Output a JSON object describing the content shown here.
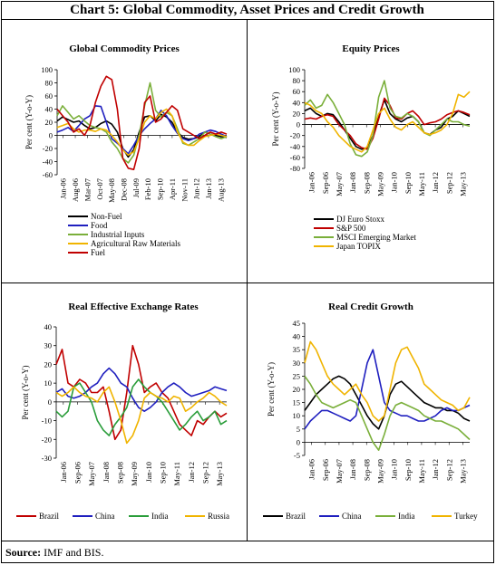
{
  "title": "Chart 5: Global Commodity, Asset Prices and Credit Growth",
  "source": {
    "label": "Source:",
    "text": "IMF and BIS."
  },
  "chart_data": [
    {
      "type": "line",
      "title": "Global Commodity Prices",
      "ylabel": "Per cent (Y-o-Y)",
      "ylim": [
        -60,
        100
      ],
      "yticks": [
        -60,
        -40,
        -20,
        0,
        20,
        40,
        60,
        80,
        100
      ],
      "x_tick_labels": [
        "Jan-06",
        "Aug-06",
        "Mar-07",
        "Oct-07",
        "May-08",
        "Dec-08",
        "Jul-09",
        "Feb-10",
        "Sep-10",
        "Apr-11",
        "Nov-11",
        "Jun-12",
        "Jan-13",
        "Aug-13"
      ],
      "legend_position": "bottom",
      "series": [
        {
          "name": "Non-Fuel",
          "color": "#000000",
          "values": [
            22,
            28,
            24,
            20,
            22,
            15,
            10,
            12,
            18,
            22,
            17,
            5,
            -20,
            -33,
            -22,
            5,
            28,
            30,
            22,
            32,
            28,
            20,
            5,
            -3,
            -6,
            -5,
            -2,
            5,
            2,
            0,
            -2,
            -3
          ]
        },
        {
          "name": "Food",
          "color": "#1f1fbf",
          "values": [
            5,
            8,
            12,
            6,
            15,
            25,
            30,
            45,
            44,
            20,
            -5,
            -12,
            -20,
            -28,
            -15,
            0,
            10,
            18,
            25,
            38,
            30,
            15,
            3,
            -5,
            -8,
            -5,
            2,
            5,
            8,
            6,
            2,
            -2
          ]
        },
        {
          "name": "Industrial Inputs",
          "color": "#7aaf3a",
          "values": [
            30,
            45,
            35,
            25,
            30,
            22,
            15,
            12,
            10,
            5,
            -10,
            -20,
            -35,
            -42,
            -30,
            0,
            45,
            80,
            38,
            28,
            35,
            30,
            10,
            -12,
            -15,
            -10,
            -5,
            5,
            2,
            -2,
            -5,
            -2
          ]
        },
        {
          "name": "Agricultural Raw Materials",
          "color": "#f0b400",
          "values": [
            12,
            15,
            18,
            10,
            5,
            8,
            8,
            6,
            10,
            8,
            0,
            -10,
            -22,
            -30,
            -25,
            -5,
            20,
            30,
            25,
            35,
            40,
            30,
            5,
            -10,
            -15,
            -15,
            -8,
            -2,
            0,
            2,
            0,
            -2
          ]
        },
        {
          "name": "Fuel",
          "color": "#c00000",
          "values": [
            40,
            30,
            20,
            5,
            10,
            0,
            15,
            50,
            75,
            90,
            85,
            40,
            -35,
            -50,
            -52,
            -20,
            50,
            60,
            20,
            25,
            35,
            45,
            38,
            10,
            5,
            0,
            -5,
            0,
            5,
            2,
            5,
            2
          ]
        }
      ]
    },
    {
      "type": "line",
      "title": "Equity Prices",
      "ylabel": "Per cent (Y-o-Y)",
      "ylim": [
        -80,
        100
      ],
      "yticks": [
        -80,
        -60,
        -40,
        -20,
        0,
        20,
        40,
        60,
        80,
        100
      ],
      "x_tick_labels": [
        "Jan-06",
        "Sep-06",
        "May-07",
        "Jan-08",
        "Sep-08",
        "May-09",
        "Jan-10",
        "Sep-10",
        "May-11",
        "Jan-12",
        "Sep-12",
        "May-13"
      ],
      "legend_position": "bottom",
      "series": [
        {
          "name": "DJ Euro Stoxx",
          "color": "#000000",
          "values": [
            25,
            30,
            20,
            15,
            20,
            18,
            5,
            -10,
            -25,
            -40,
            -45,
            -42,
            -20,
            15,
            45,
            20,
            10,
            5,
            12,
            15,
            5,
            -15,
            -18,
            -10,
            -5,
            10,
            15,
            25,
            20,
            15
          ]
        },
        {
          "name": "S&P 500",
          "color": "#c00000",
          "values": [
            10,
            12,
            10,
            15,
            18,
            15,
            0,
            -10,
            -20,
            -35,
            -42,
            -45,
            -25,
            10,
            48,
            35,
            12,
            10,
            20,
            25,
            15,
            0,
            3,
            5,
            10,
            18,
            22,
            25,
            22,
            18
          ]
        },
        {
          "name": "MSCI Emerging Market",
          "color": "#7aaf3a",
          "values": [
            35,
            45,
            30,
            35,
            55,
            40,
            20,
            0,
            -35,
            -55,
            -58,
            -50,
            -20,
            50,
            80,
            30,
            15,
            12,
            20,
            15,
            5,
            -15,
            -20,
            -10,
            0,
            10,
            5,
            5,
            0,
            -3
          ]
        },
        {
          "name": "Japan TOPIX",
          "color": "#f0b400",
          "values": [
            40,
            35,
            25,
            20,
            5,
            -5,
            -20,
            -30,
            -40,
            -45,
            -50,
            -40,
            -10,
            20,
            30,
            10,
            -5,
            -10,
            0,
            5,
            -5,
            -15,
            -18,
            -15,
            -10,
            0,
            20,
            55,
            50,
            60
          ]
        }
      ]
    },
    {
      "type": "line",
      "title": "Real Effective Exchange Rates",
      "ylabel": "Per cent (Y-o-Y)",
      "ylim": [
        -30,
        40
      ],
      "yticks": [
        -30,
        -20,
        -10,
        0,
        10,
        20,
        30,
        40
      ],
      "x_tick_labels": [
        "Jan-06",
        "Sep-06",
        "May-07",
        "Jan-08",
        "Sep-08",
        "May-09",
        "Jan-10",
        "Sep-10",
        "May-11",
        "Jan-12",
        "Sep-12",
        "May-13"
      ],
      "legend_position": "bottom",
      "series": [
        {
          "name": "Brazil",
          "color": "#c00000",
          "values": [
            20,
            28,
            10,
            8,
            12,
            10,
            5,
            5,
            8,
            -5,
            -20,
            -15,
            5,
            30,
            20,
            5,
            8,
            10,
            5,
            2,
            -5,
            -12,
            -15,
            -18,
            -10,
            -12,
            -8,
            -5,
            -8,
            -6
          ]
        },
        {
          "name": "China",
          "color": "#1f1fbf",
          "values": [
            5,
            7,
            3,
            2,
            3,
            5,
            8,
            10,
            15,
            18,
            15,
            10,
            8,
            2,
            -3,
            -5,
            -3,
            0,
            5,
            8,
            10,
            8,
            5,
            3,
            4,
            5,
            6,
            8,
            7,
            6
          ]
        },
        {
          "name": "India",
          "color": "#2a9d3a",
          "values": [
            -5,
            -8,
            -5,
            8,
            10,
            5,
            0,
            -10,
            -15,
            -18,
            -12,
            -8,
            -3,
            8,
            12,
            8,
            5,
            3,
            0,
            -5,
            -10,
            -15,
            -12,
            -8,
            -5,
            -10,
            -8,
            -5,
            -12,
            -10
          ]
        },
        {
          "name": "Russia",
          "color": "#f0b400",
          "values": [
            5,
            3,
            5,
            8,
            5,
            3,
            2,
            0,
            5,
            8,
            0,
            -10,
            -22,
            -18,
            -10,
            2,
            5,
            3,
            2,
            0,
            3,
            2,
            -5,
            -3,
            0,
            2,
            5,
            3,
            0,
            -2
          ]
        }
      ]
    },
    {
      "type": "line",
      "title": "Real Credit Growth",
      "ylabel": "Per cent (Y-o-Y)",
      "ylim": [
        -5,
        45
      ],
      "yticks": [
        -5,
        0,
        5,
        10,
        15,
        20,
        25,
        30,
        35,
        40,
        45
      ],
      "x_tick_labels": [
        "Jan-06",
        "Sep-06",
        "May-07",
        "Jan-08",
        "Sep-08",
        "May-09",
        "Jan-10",
        "Sep-10",
        "May-11",
        "Jan-12",
        "Sep-12",
        "May-13"
      ],
      "legend_position": "bottom",
      "series": [
        {
          "name": "Brazil",
          "color": "#000000",
          "values": [
            12,
            15,
            18,
            20,
            22,
            24,
            25,
            24,
            22,
            18,
            14,
            10,
            7,
            5,
            10,
            18,
            22,
            23,
            21,
            19,
            17,
            15,
            14,
            13,
            13,
            12,
            12,
            11,
            9,
            8
          ]
        },
        {
          "name": "China",
          "color": "#1f1fbf",
          "values": [
            5,
            8,
            10,
            12,
            12,
            11,
            10,
            9,
            8,
            10,
            20,
            30,
            35,
            25,
            15,
            12,
            11,
            10,
            10,
            9,
            8,
            8,
            9,
            10,
            12,
            13,
            12,
            12,
            13,
            14
          ]
        },
        {
          "name": "India",
          "color": "#7aaf3a",
          "values": [
            25,
            22,
            18,
            15,
            14,
            13,
            14,
            15,
            16,
            15,
            10,
            5,
            0,
            -3,
            3,
            10,
            14,
            15,
            14,
            13,
            12,
            10,
            9,
            8,
            8,
            7,
            6,
            5,
            3,
            1
          ]
        },
        {
          "name": "Turkey",
          "color": "#f0b400",
          "values": [
            30,
            38,
            35,
            30,
            25,
            22,
            20,
            18,
            20,
            22,
            18,
            15,
            10,
            8,
            10,
            20,
            30,
            35,
            36,
            32,
            28,
            22,
            20,
            18,
            16,
            15,
            14,
            12,
            13,
            17
          ]
        }
      ]
    }
  ]
}
